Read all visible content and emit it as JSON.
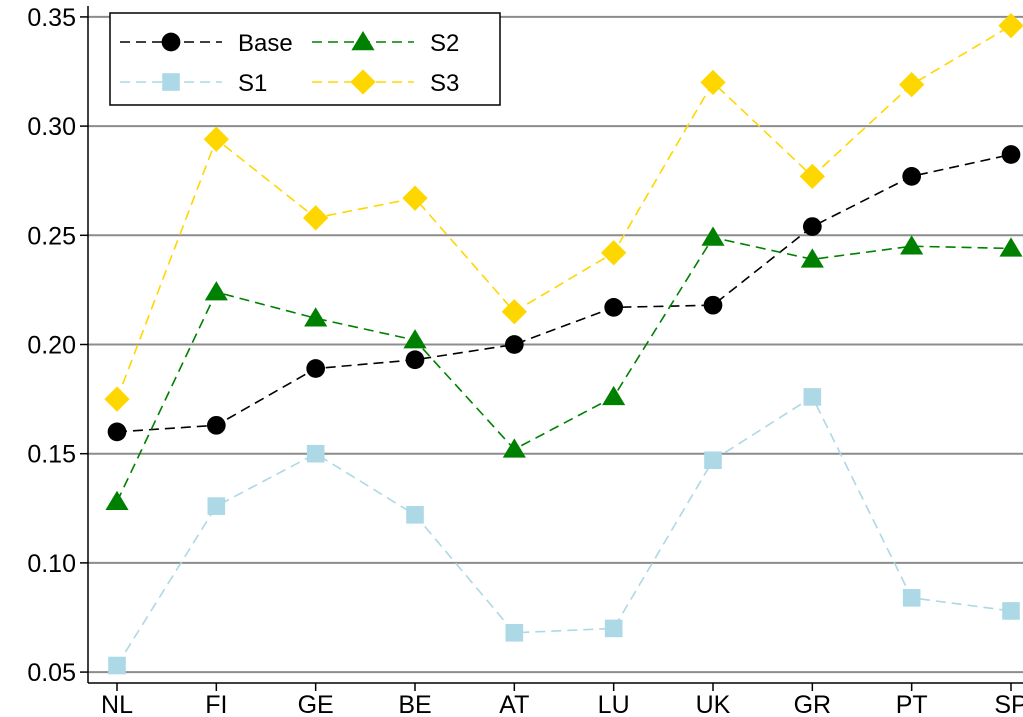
{
  "chart_data": {
    "type": "line",
    "title": "",
    "xlabel": "",
    "ylabel": "",
    "categories": [
      "NL",
      "FI",
      "GE",
      "BE",
      "AT",
      "LU",
      "UK",
      "GR",
      "PT",
      "SP"
    ],
    "ylim": [
      0.045,
      0.355
    ],
    "yticks": [
      "0.05",
      "0.10",
      "0.15",
      "0.20",
      "0.25",
      "0.30",
      "0.35"
    ],
    "grid": true,
    "legend_position": "top-left",
    "series": [
      {
        "name": "Base",
        "color": "#000000",
        "marker": "circle",
        "values": [
          0.16,
          0.163,
          0.189,
          0.193,
          0.2,
          0.217,
          0.218,
          0.254,
          0.277,
          0.287
        ]
      },
      {
        "name": "S1",
        "color": "#add8e6",
        "marker": "square",
        "values": [
          0.053,
          0.126,
          0.15,
          0.122,
          0.068,
          0.07,
          0.147,
          0.176,
          0.084,
          0.078
        ]
      },
      {
        "name": "S2",
        "color": "#008000",
        "marker": "triangle",
        "values": [
          0.128,
          0.224,
          0.212,
          0.202,
          0.152,
          0.176,
          0.249,
          0.239,
          0.245,
          0.244
        ]
      },
      {
        "name": "S3",
        "color": "#ffd700",
        "marker": "diamond",
        "values": [
          0.175,
          0.294,
          0.258,
          0.267,
          0.215,
          0.242,
          0.32,
          0.277,
          0.319,
          0.346
        ]
      }
    ]
  }
}
